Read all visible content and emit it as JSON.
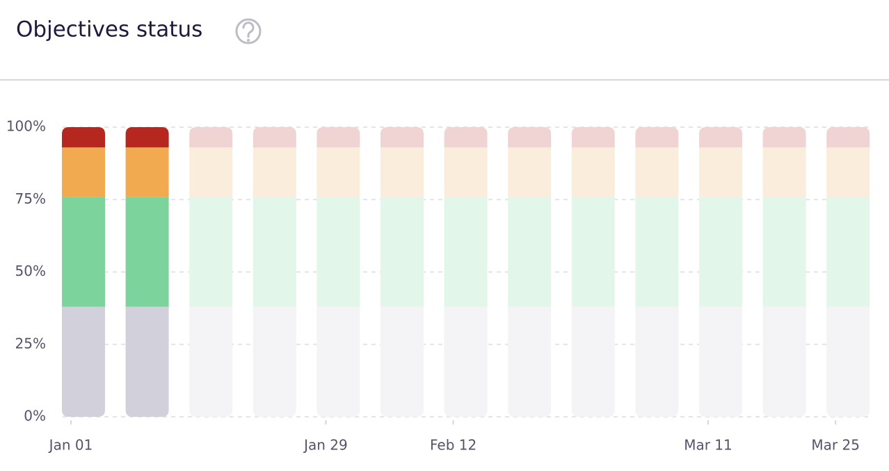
{
  "chart_data": {
    "type": "stacked-bar",
    "title": "Objectives status",
    "categories": [
      "Jan 01",
      null,
      null,
      null,
      "Jan 29",
      null,
      "Feb 12",
      null,
      null,
      null,
      "Mar 11",
      null,
      "Mar 25"
    ],
    "series": [
      {
        "color": "#d1d0db",
        "colors": [
          "#d1d0db",
          "#d1d0db",
          "#f4f4f6",
          "#f4f4f6",
          "#f4f4f6",
          "#f4f4f6",
          "#f4f4f6",
          "#f4f4f6",
          "#f4f4f6",
          "#f4f4f6",
          "#f4f4f6",
          "#f4f4f6",
          "#f4f4f6"
        ],
        "values": [
          38,
          38,
          38,
          38,
          38,
          38,
          38,
          38,
          38,
          38,
          38,
          38,
          38
        ]
      },
      {
        "color": "#7dd39c",
        "colors": [
          "#7dd39c",
          "#7dd39c",
          "#e3f6ea",
          "#e3f6ea",
          "#e3f6ea",
          "#e3f6ea",
          "#e3f6ea",
          "#e3f6ea",
          "#e3f6ea",
          "#e3f6ea",
          "#e3f6ea",
          "#e3f6ea",
          "#e3f6ea"
        ],
        "values": [
          38,
          38,
          38,
          38,
          38,
          38,
          38,
          38,
          38,
          38,
          38,
          38,
          38
        ]
      },
      {
        "color": "#f2aa50",
        "colors": [
          "#f2aa50",
          "#f2aa50",
          "#fbeddc",
          "#fbeddc",
          "#fbeddc",
          "#fbeddc",
          "#fbeddc",
          "#fbeddc",
          "#fbeddc",
          "#fbeddc",
          "#fbeddc",
          "#fbeddc",
          "#fbeddc"
        ],
        "values": [
          17,
          17,
          17,
          17,
          17,
          17,
          17,
          17,
          17,
          17,
          17,
          17,
          17
        ]
      },
      {
        "color": "#b5271f",
        "colors": [
          "#b5271f",
          "#b5271f",
          "#f0d4d4",
          "#f0d4d4",
          "#f0d4d4",
          "#f0d4d4",
          "#f0d4d4",
          "#f0d4d4",
          "#f0d4d4",
          "#f0d4d4",
          "#f0d4d4",
          "#f0d4d4",
          "#f0d4d4"
        ],
        "values": [
          7,
          7,
          7,
          7,
          7,
          7,
          7,
          7,
          7,
          7,
          7,
          7,
          7
        ]
      }
    ],
    "ylim": [
      0,
      100
    ],
    "yticks": [
      {
        "value": 0,
        "label": "0%"
      },
      {
        "value": 25,
        "label": "25%"
      },
      {
        "value": 50,
        "label": "50%"
      },
      {
        "value": 75,
        "label": "75%"
      },
      {
        "value": 100,
        "label": "100%"
      }
    ],
    "grid": true
  }
}
